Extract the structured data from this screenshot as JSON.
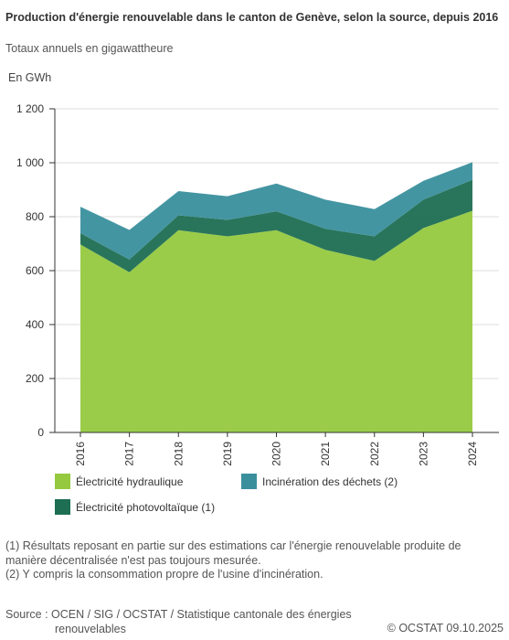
{
  "header": {
    "title": "Production d'énergie renouvelable dans le canton de Genève, selon la source, depuis 2016",
    "subtitle": "Totaux annuels en gigawattheure"
  },
  "chart_data": {
    "type": "area",
    "stacked": true,
    "unit_label": "En GWh",
    "x": [
      "2016",
      "2017",
      "2018",
      "2019",
      "2020",
      "2021",
      "2022",
      "2023",
      "2024"
    ],
    "ylim": [
      0,
      1200
    ],
    "yticks": [
      0,
      200,
      400,
      600,
      800,
      1000,
      1200
    ],
    "ytick_labels": [
      "0",
      "200",
      "400",
      "600",
      "800",
      "1 000",
      "1 200"
    ],
    "grid": "horizontal",
    "series": [
      {
        "name": "Électricité hydraulique",
        "color": "#95c940",
        "values": [
          697,
          594,
          750,
          727,
          750,
          677,
          636,
          758,
          822
        ]
      },
      {
        "name": "Électricité photovoltaïque (1)",
        "color": "#1d6e52",
        "values": [
          42,
          47,
          55,
          61,
          70,
          78,
          91,
          105,
          115
        ]
      },
      {
        "name": "Incinération des déchets (2)",
        "color": "#3a8f9d",
        "values": [
          98,
          110,
          90,
          88,
          103,
          108,
          101,
          70,
          65
        ]
      }
    ]
  },
  "legend": {
    "items": [
      {
        "label": "Électricité hydraulique",
        "color": "#95c940"
      },
      {
        "label": "Incinération des déchets (2)",
        "color": "#3a8f9d"
      },
      {
        "label": "Électricité photovoltaïque (1)",
        "color": "#1d6e52"
      }
    ]
  },
  "notes": {
    "note1": "(1) Résultats reposant en partie sur des estimations car l'énergie renouvelable produite de manière décentralisée n'est pas toujours mesurée.",
    "note2": "(2) Y compris la consommation propre de l'usine d'incinération."
  },
  "footer": {
    "source_line1": "Source : OCEN / SIG / OCSTAT / Statistique cantonale des énergies",
    "source_line2": "renouvelables",
    "copyright": "© OCSTAT 09.10.2025"
  }
}
